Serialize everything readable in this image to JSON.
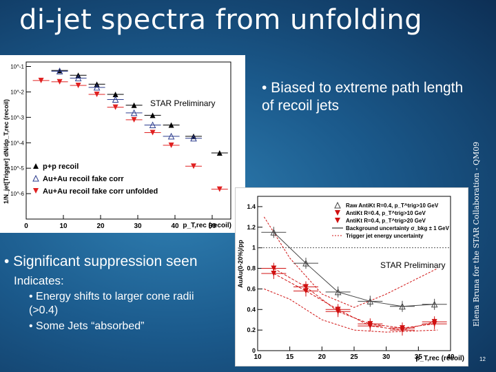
{
  "slide": {
    "title": "di-jet spectra from unfolding",
    "bullet_top": "• Biased to extreme path length of recoil jets",
    "bullet_main": "• Significant suppression seen",
    "indicates": "Indicates:",
    "sub1": "• Energy shifts to larger cone radii (>0.4)",
    "sub2": "• Some Jets “absorbed”",
    "side_text": "Elena Bruna for the STAR Collaboration - QM09",
    "page_number": "12"
  },
  "chart_data": [
    {
      "type": "scatter",
      "preliminary_label": "STAR Preliminary",
      "ylabel": "1/N_jet[Trigger] dN/dp_T,rec (recoil)",
      "xlabel": "p_T,rec (recoil)",
      "log_y": true,
      "xlim": [
        0,
        55
      ],
      "ylim": [
        1e-07,
        0.15
      ],
      "x_ticks": [
        "0",
        "10",
        "20",
        "30",
        "40",
        "50"
      ],
      "y_ticks": [
        "10^-1",
        "10^-2",
        "10^-3",
        "10^-4",
        "10^-5",
        "10^-6"
      ],
      "legend": [
        "p+p recoil",
        "Au+Au recoil fake corr",
        "Au+Au recoil fake corr unfolded"
      ],
      "legend_placement": "bottom-left",
      "series": [
        {
          "name": "p+p recoil",
          "color": "#000000",
          "marker": "triangle-up",
          "x": [
            9,
            14,
            19,
            24,
            29,
            34,
            39,
            45,
            52
          ],
          "y": [
            0.07,
            0.045,
            0.02,
            0.008,
            0.003,
            0.0012,
            0.0005,
            0.00018,
            4e-05
          ]
        },
        {
          "name": "Au+Au recoil fake corr",
          "color": "#2a3a8c",
          "marker": "triangle-up-open",
          "x": [
            9,
            14,
            19,
            24,
            29,
            34,
            39,
            45
          ],
          "y": [
            0.065,
            0.035,
            0.015,
            0.005,
            0.0015,
            0.0005,
            0.00018,
            0.00015
          ]
        },
        {
          "name": "Au+Au recoil fake corr unfolded",
          "color": "#e02020",
          "marker": "triangle-down",
          "x": [
            4,
            9,
            14,
            19,
            24,
            29,
            34,
            39,
            45,
            52
          ],
          "y": [
            0.028,
            0.025,
            0.018,
            0.008,
            0.0025,
            0.0008,
            0.00025,
            8e-05,
            1.2e-05,
            1.5e-06
          ]
        }
      ]
    },
    {
      "type": "line",
      "preliminary_label": "STAR Preliminary",
      "ylabel": "AuAu(0-20%)/pp",
      "xlabel": "p_T,rec (recoil)",
      "xlim": [
        10,
        40
      ],
      "ylim": [
        0,
        1.5
      ],
      "x_ticks": [
        "10",
        "15",
        "20",
        "25",
        "30",
        "35",
        "40"
      ],
      "y_ticks": [
        "0",
        "0.2",
        "0.4",
        "0.6",
        "0.8",
        "1",
        "1.2",
        "1.4"
      ],
      "legend": [
        "Raw AntiKt R=0.4, p_T^trig>10 GeV",
        "AntiKt R=0.4, p_T^trig>10 GeV",
        "AntiKt R=0.4, p_T^trig>20 GeV",
        "Background uncertainty σ_bkg ± 1 GeV",
        "Trigger jet energy uncertainty"
      ],
      "legend_placement": "top-right",
      "series": [
        {
          "name": "Raw AntiKt R=0.4, p_T^trig>10 GeV",
          "color": "#444444",
          "x": [
            12.5,
            17.5,
            22.5,
            27.5,
            32.5,
            37.5
          ],
          "y": [
            1.15,
            0.85,
            0.57,
            0.48,
            0.43,
            0.45
          ]
        },
        {
          "name": "AntiKt R=0.4, p_T^trig>10 GeV",
          "color": "#d01010",
          "x": [
            12.5,
            17.5,
            22.5,
            27.5,
            32.5,
            37.5
          ],
          "y": [
            0.8,
            0.62,
            0.38,
            0.26,
            0.22,
            0.26
          ]
        },
        {
          "name": "AntiKt R=0.4, p_T^trig>20 GeV",
          "color": "#d01010",
          "x": [
            12.5,
            17.5,
            22.5,
            27.5,
            32.5,
            37.5
          ],
          "y": [
            0.75,
            0.58,
            0.4,
            0.24,
            0.2,
            0.28
          ]
        }
      ],
      "reference_line": 1.0
    }
  ]
}
